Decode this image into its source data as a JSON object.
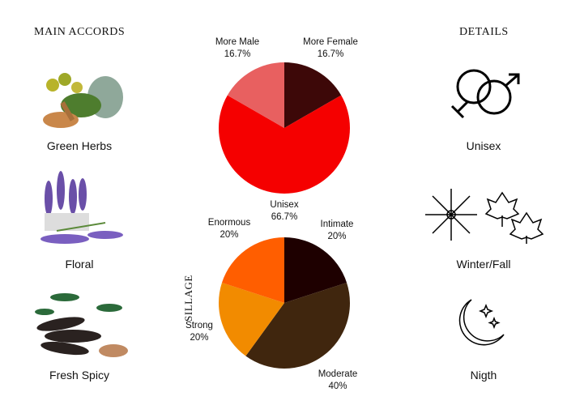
{
  "accords": {
    "title": "MAIN ACCORDS",
    "items": [
      {
        "label": "Green Herbs"
      },
      {
        "label": "Floral"
      },
      {
        "label": "Fresh Spicy"
      }
    ]
  },
  "details": {
    "title": "DETAILS",
    "items": [
      {
        "label": "Unisex",
        "icon": "gender-icon"
      },
      {
        "label": "Winter/Fall",
        "icon": "snowflake-leaves-icon"
      },
      {
        "label": "Nigth",
        "icon": "moon-stars-icon"
      }
    ]
  },
  "chart_data": [
    {
      "type": "pie",
      "slices": [
        {
          "label": "More Female",
          "value": 16.7,
          "text": "16.7%",
          "color": "#3d0808"
        },
        {
          "label": "Unisex",
          "value": 66.7,
          "text": "66.7%",
          "color": "#f50000"
        },
        {
          "label": "More Male",
          "value": 16.7,
          "text": "16.7%",
          "color": "#e86060"
        }
      ]
    },
    {
      "type": "pie",
      "title": "SILLAGE",
      "slices": [
        {
          "label": "Intimate",
          "value": 20,
          "text": "20%",
          "color": "#1e0000"
        },
        {
          "label": "Moderate",
          "value": 40,
          "text": "40%",
          "color": "#40260e"
        },
        {
          "label": "Strong",
          "value": 20,
          "text": "20%",
          "color": "#f28b00"
        },
        {
          "label": "Enormous",
          "value": 20,
          "text": "20%",
          "color": "#ff5e00"
        }
      ]
    }
  ]
}
